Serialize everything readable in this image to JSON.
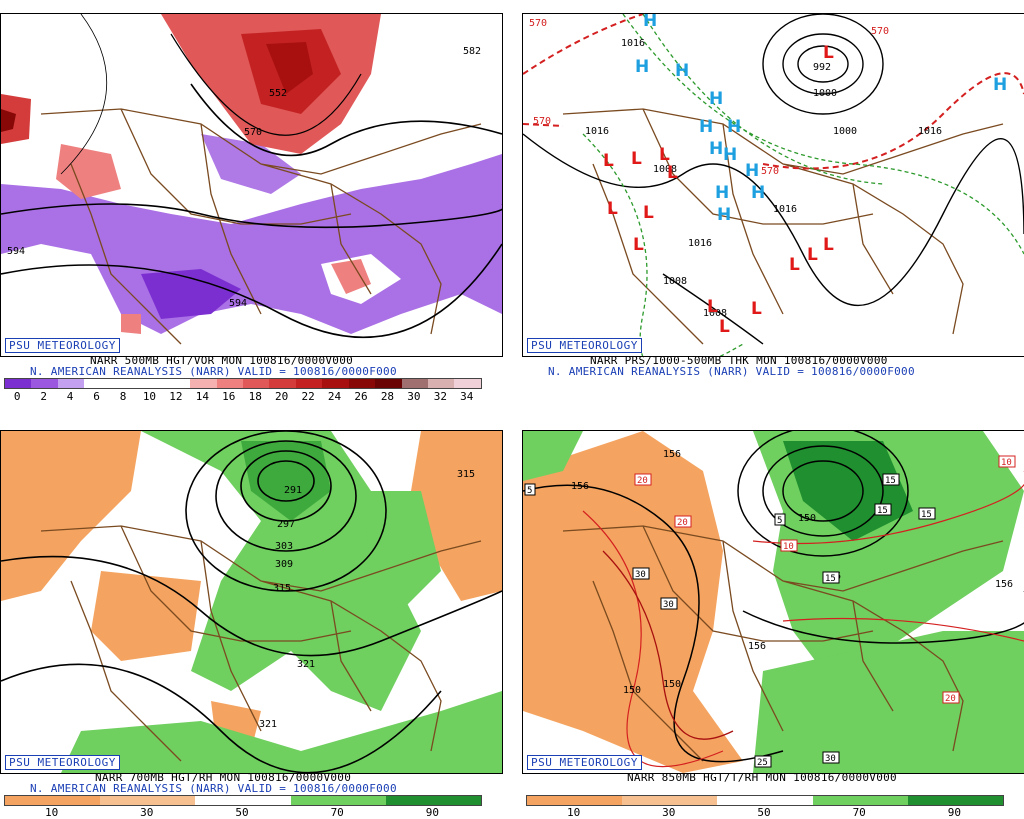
{
  "panels": [
    {
      "badge": "PSU METEOROLOGY",
      "caption1": "NARR 500MB HGT/VOR MON 100816/0000V000",
      "caption2": "N. AMERICAN REANALYSIS (NARR) VALID = 100816/0000F000",
      "scale_labels": [
        "0",
        "2",
        "4",
        "6",
        "8",
        "10",
        "12",
        "14",
        "16",
        "18",
        "20",
        "22",
        "24",
        "26",
        "28",
        "30",
        "32",
        "34"
      ],
      "contour_labels": [
        "552",
        "570",
        "582",
        "594",
        "594"
      ]
    },
    {
      "badge": "PSU METEOROLOGY",
      "caption1": "NARR PRS/1000-500MB THK MON 100816/0000V000",
      "caption2": "N. AMERICAN REANALYSIS (NARR) VALID = 100816/0000F000",
      "contour_labels": [
        "570",
        "570",
        "570",
        "570",
        "992",
        "1000",
        "1000",
        "1008",
        "1016",
        "1016",
        "1016",
        "1016",
        "1016",
        "1008",
        "1008"
      ],
      "high_symbol": "H",
      "low_symbol": "L"
    },
    {
      "badge": "PSU METEOROLOGY",
      "caption1": "NARR 700MB HGT/RH MON 100816/0000V000",
      "caption2": "N. AMERICAN REANALYSIS (NARR) VALID = 100816/0000F000",
      "scale_labels": [
        "10",
        "30",
        "50",
        "70",
        "90"
      ],
      "contour_labels": [
        "291",
        "297",
        "303",
        "309",
        "315",
        "315",
        "321",
        "321"
      ]
    },
    {
      "badge": "PSU METEOROLOGY",
      "caption1": "NARR 850MB HGT/T/RH MON 100816/0000V000",
      "scale_labels": [
        "10",
        "30",
        "50",
        "70",
        "90"
      ],
      "contour_labels": [
        "156",
        "156",
        "150",
        "156",
        "156",
        "150",
        "150",
        "156"
      ],
      "temp_labels": [
        "5",
        "20",
        "20",
        "30",
        "30",
        "30",
        "5",
        "15",
        "15",
        "15",
        "15",
        "10",
        "25",
        "20",
        "10"
      ]
    }
  ],
  "colors": {
    "vor_scale": [
      "#7b2fd0",
      "#9b57e0",
      "#c3a0f0",
      "#ffffff",
      "#ffffff",
      "#ffffff",
      "#ffffff",
      "#f5b0b0",
      "#ee8080",
      "#e05858",
      "#d43c3c",
      "#c42222",
      "#a81010",
      "#880808",
      "#6a0404",
      "#a07070",
      "#d8b0b0",
      "#f0d0d8"
    ],
    "rh_scale": [
      "#f4a460",
      "#f7c090",
      "#ffffff",
      "#6fcf5f",
      "#1f8f2f"
    ],
    "map": "#7a4a20",
    "psu": "#1b3fb5"
  }
}
